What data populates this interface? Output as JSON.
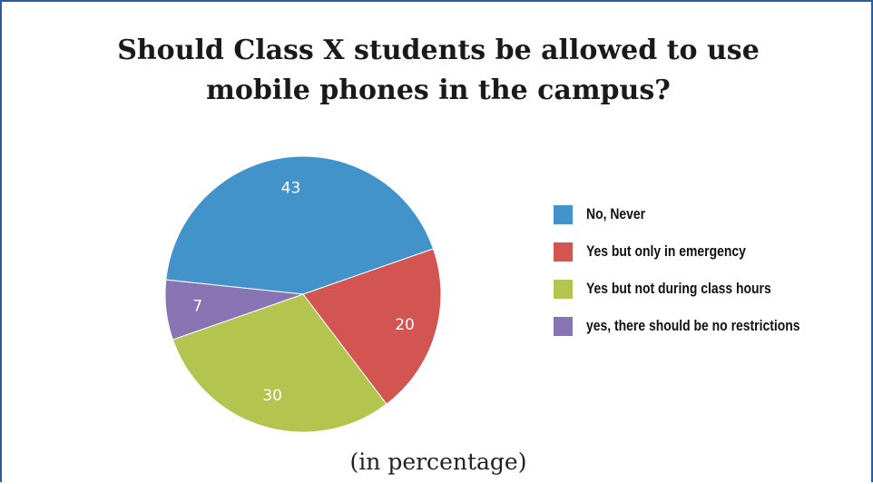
{
  "chart_data": {
    "type": "pie",
    "title_line1": "Should Class X students be allowed to use",
    "title_line2": "mobile phones in the campus?",
    "footnote": "(in percentage)",
    "legend_position": "right",
    "slices": [
      {
        "name": "No, Never",
        "value": 43,
        "label": "43",
        "color": "#4393cb"
      },
      {
        "name": "Yes but only in emergency",
        "value": 20,
        "label": "20",
        "color": "#d35552"
      },
      {
        "name": "Yes but not during class hours",
        "value": 30,
        "label": "30",
        "color": "#b3c44f"
      },
      {
        "name": "yes, there should be no restrictions",
        "value": 7,
        "label": "7",
        "color": "#8874b3"
      }
    ]
  }
}
